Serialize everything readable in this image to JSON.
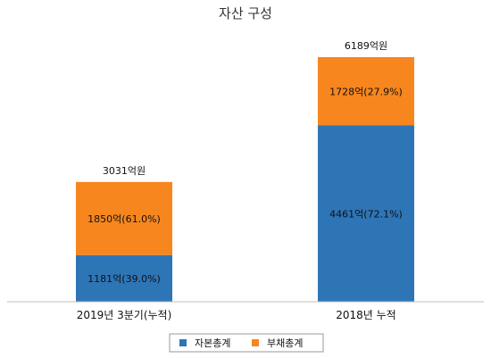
{
  "chart_data": {
    "type": "bar",
    "stacked": true,
    "title": "자산 구성",
    "categories": [
      "2019년 3분기(누적)",
      "2018년 누적"
    ],
    "series": [
      {
        "name": "자본총계",
        "color": "#2e75b6",
        "values": [
          1181,
          4461
        ],
        "labels": [
          "1181억(39.0%)",
          "4461억(72.1%)"
        ]
      },
      {
        "name": "부채총계",
        "color": "#f7861e",
        "values": [
          1850,
          1728
        ],
        "labels": [
          "1850억(61.0%)",
          "1728억(27.9%)"
        ]
      }
    ],
    "totals": [
      3031,
      6189
    ],
    "total_labels": [
      "3031억원",
      "6189억원"
    ],
    "ylim": [
      0,
      7000
    ],
    "grid": false,
    "legend_position": "bottom"
  }
}
